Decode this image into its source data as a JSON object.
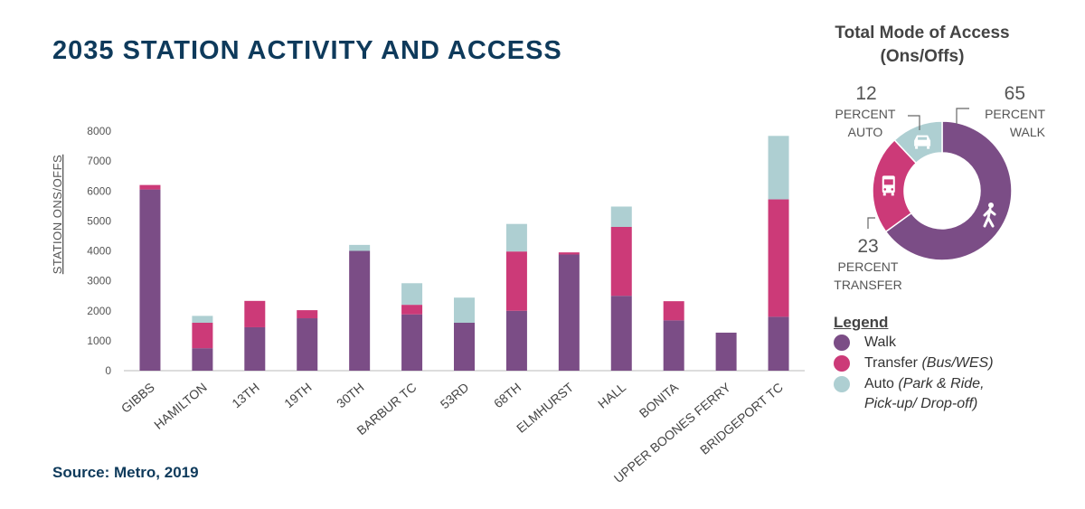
{
  "title": "2035 STATION ACTIVITY AND ACCESS",
  "source": "Source: Metro, 2019",
  "colors": {
    "walk": "#7b4d86",
    "transfer": "#cc3a78",
    "auto": "#aecfd2"
  },
  "chart_data": [
    {
      "type": "bar",
      "stacked": true,
      "ylabel": "STATION ONS/OFFS",
      "ylim": [
        0,
        8000
      ],
      "yticks": [
        "0",
        "1000",
        "2000",
        "3000",
        "4000",
        "5000",
        "6000",
        "7000",
        "8000"
      ],
      "grid": false,
      "categories": [
        "GIBBS",
        "HAMILTON",
        "13TH",
        "19TH",
        "30TH",
        "BARBUR TC",
        "53RD",
        "68TH",
        "ELMHURST",
        "HALL",
        "BONITA",
        "UPPER BOONES FERRY",
        "BRIDGEPORT TC"
      ],
      "series": [
        {
          "name": "Walk",
          "color": "#7b4d86",
          "values": [
            6050,
            750,
            1450,
            1750,
            4000,
            1880,
            1600,
            2000,
            3880,
            2500,
            1680,
            1270,
            1800
          ]
        },
        {
          "name": "Transfer",
          "color": "#cc3a78",
          "values": [
            150,
            850,
            880,
            270,
            0,
            320,
            0,
            1980,
            70,
            2300,
            640,
            0,
            3920
          ]
        },
        {
          "name": "Auto",
          "color": "#aecfd2",
          "values": [
            0,
            230,
            0,
            0,
            200,
            720,
            840,
            920,
            0,
            680,
            0,
            0,
            2120
          ]
        }
      ]
    },
    {
      "type": "pie",
      "donut": true,
      "title": "Total Mode of Access",
      "subtitle": "(Ons/Offs)",
      "slices": [
        {
          "name": "Walk",
          "value": 65,
          "color": "#7b4d86"
        },
        {
          "name": "Transfer",
          "value": 23,
          "color": "#cc3a78"
        },
        {
          "name": "Auto",
          "value": 12,
          "color": "#aecfd2"
        }
      ],
      "callouts": [
        {
          "value": "65",
          "line1": "PERCENT",
          "line2": "WALK"
        },
        {
          "value": "12",
          "line1": "PERCENT",
          "line2": "AUTO"
        },
        {
          "value": "23",
          "line1": "PERCENT",
          "line2": "TRANSFER"
        }
      ]
    }
  ],
  "legend": {
    "title": "Legend",
    "items": [
      {
        "label": "Walk",
        "note": ""
      },
      {
        "label": "Transfer",
        "note": "(Bus/WES)"
      },
      {
        "label": "Auto",
        "note": "(Park & Ride,",
        "note2": "Pick-up/ Drop-off)"
      }
    ]
  }
}
